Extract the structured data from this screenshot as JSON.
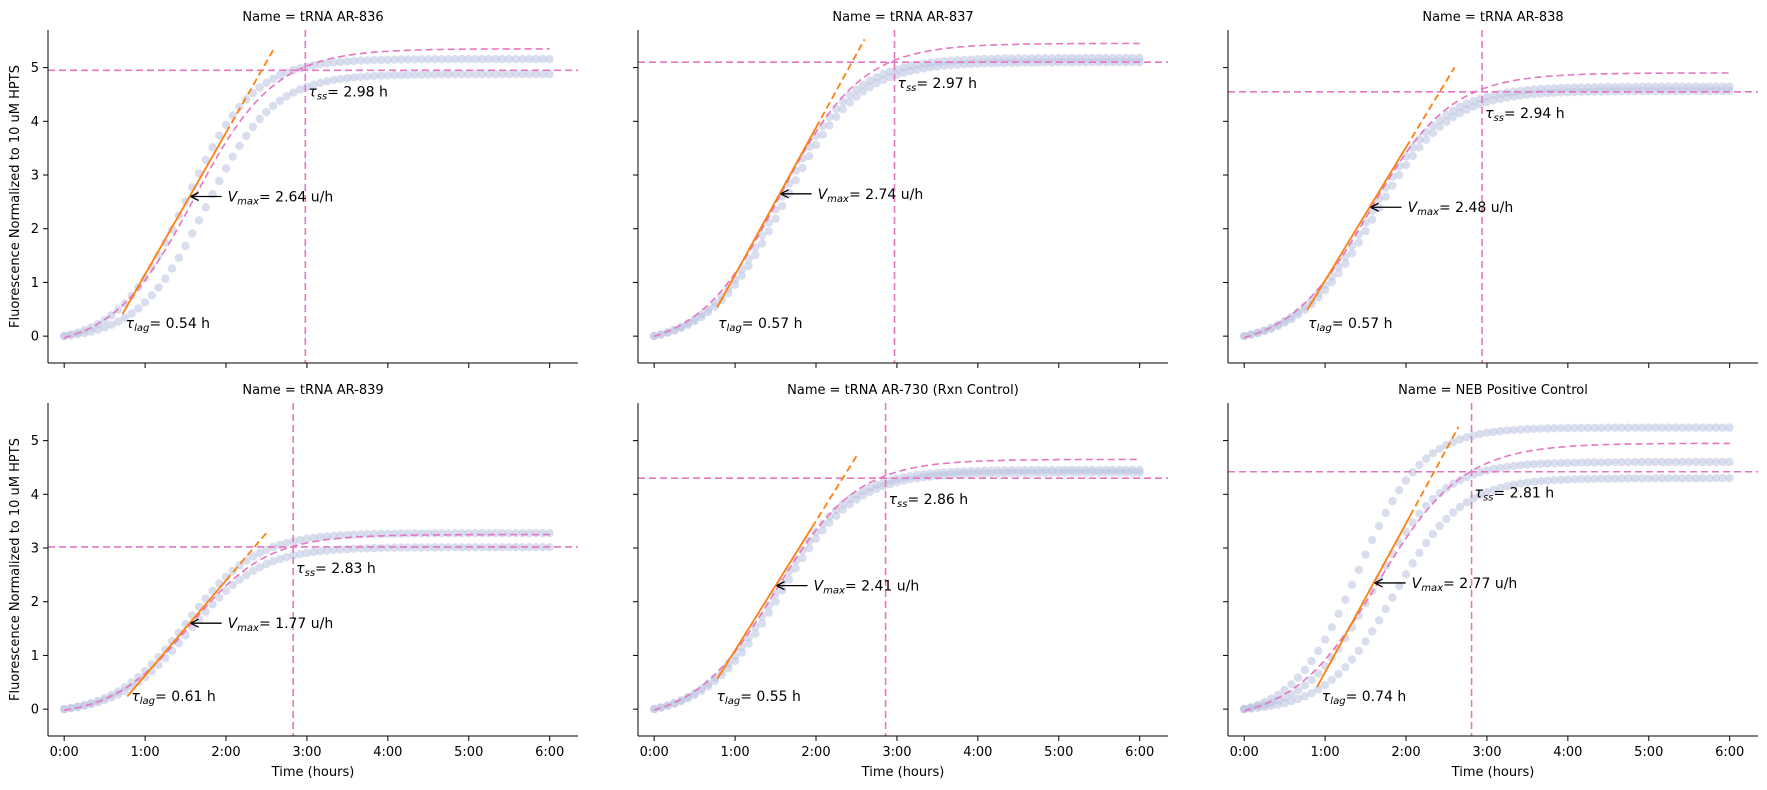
{
  "chart_data": {
    "type": "scatter",
    "layout": "2x3 facet grid",
    "shared_y": true,
    "xlabel": "Time (hours)",
    "ylabel": "Fluorescence Normalized to 10 uM HPTS",
    "xlim": [
      -0.2,
      6.35
    ],
    "ylim": [
      -0.5,
      5.7
    ],
    "x_ticks": [
      0,
      1,
      2,
      3,
      4,
      5,
      6
    ],
    "x_tick_labels": [
      "0:00",
      "1:00",
      "2:00",
      "3:00",
      "4:00",
      "5:00",
      "6:00"
    ],
    "y_ticks": [
      0,
      1,
      2,
      3,
      4,
      5
    ],
    "y_tick_labels": [
      "0",
      "1",
      "2",
      "3",
      "4",
      "5"
    ],
    "grid": false,
    "colors": {
      "points": "#b9c3e0",
      "fit": "#e377c2",
      "tangent": "#ff7f0e",
      "ref_lines": "#e377c2",
      "arrow": "#000000"
    },
    "annotation_text": {
      "tau": "τ",
      "lag_sub": "lag",
      "ss_sub": "ss",
      "vmax_sym": "V",
      "vmax_sub": "max",
      "hours_unit": "h",
      "rate_unit": "u/h",
      "equals": "="
    },
    "panels": [
      {
        "title": "Name = tRNA AR-836",
        "vmax": 2.64,
        "vmax_str": "2.64",
        "tau_lag": 0.54,
        "tau_lag_str": "0.54",
        "tau_ss": 2.98,
        "tau_ss_str": "2.98",
        "plateau": 4.95,
        "inflection": [
          1.55,
          2.6
        ],
        "tangent_x": [
          0.72,
          2.6
        ],
        "replicates": [
          {
            "plateau": 5.3,
            "midpoint": 1.5,
            "slope_k": 2.4
          },
          {
            "plateau": 4.95,
            "midpoint": 1.75,
            "slope_k": 2.4
          }
        ],
        "fit": {
          "plateau": 5.35,
          "midpoint": 1.6,
          "k": 2.0,
          "offset": -0.25
        }
      },
      {
        "title": "Name = tRNA AR-837",
        "vmax": 2.74,
        "vmax_str": "2.74",
        "tau_lag": 0.57,
        "tau_lag_str": "0.57",
        "tau_ss": 2.97,
        "tau_ss_str": "2.97",
        "plateau": 5.1,
        "inflection": [
          1.55,
          2.65
        ],
        "tangent_x": [
          0.78,
          2.6
        ],
        "replicates": [
          {
            "plateau": 5.35,
            "midpoint": 1.55,
            "slope_k": 2.2
          },
          {
            "plateau": 5.25,
            "midpoint": 1.6,
            "slope_k": 2.2
          }
        ],
        "fit": {
          "plateau": 5.45,
          "midpoint": 1.55,
          "k": 2.0,
          "offset": -0.25
        }
      },
      {
        "title": "Name = tRNA AR-838",
        "vmax": 2.48,
        "vmax_str": "2.48",
        "tau_lag": 0.57,
        "tau_lag_str": "0.57",
        "tau_ss": 2.94,
        "tau_ss_str": "2.94",
        "plateau": 4.55,
        "inflection": [
          1.55,
          2.4
        ],
        "tangent_x": [
          0.78,
          2.6
        ],
        "replicates": [
          {
            "plateau": 4.8,
            "midpoint": 1.55,
            "slope_k": 2.2
          },
          {
            "plateau": 4.7,
            "midpoint": 1.6,
            "slope_k": 2.2
          }
        ],
        "fit": {
          "plateau": 4.9,
          "midpoint": 1.55,
          "k": 2.0,
          "offset": -0.25
        }
      },
      {
        "title": "Name = tRNA AR-839",
        "vmax": 1.77,
        "vmax_str": "1.77",
        "tau_lag": 0.61,
        "tau_lag_str": "0.61",
        "tau_ss": 2.83,
        "tau_ss_str": "2.83",
        "plateau": 3.02,
        "inflection": [
          1.55,
          1.6
        ],
        "tangent_x": [
          0.78,
          2.5
        ],
        "replicates": [
          {
            "plateau": 3.38,
            "midpoint": 1.5,
            "slope_k": 2.3
          },
          {
            "plateau": 3.1,
            "midpoint": 1.55,
            "slope_k": 2.3
          }
        ],
        "fit": {
          "plateau": 3.25,
          "midpoint": 1.55,
          "k": 2.1,
          "offset": -0.15
        }
      },
      {
        "title": "Name = tRNA AR-730 (Rxn Control)",
        "vmax": 2.41,
        "vmax_str": "2.41",
        "tau_lag": 0.55,
        "tau_lag_str": "0.55",
        "tau_ss": 2.86,
        "tau_ss_str": "2.86",
        "plateau": 4.3,
        "inflection": [
          1.5,
          2.3
        ],
        "tangent_x": [
          0.78,
          2.5
        ],
        "replicates": [
          {
            "plateau": 4.62,
            "midpoint": 1.5,
            "slope_k": 2.2
          },
          {
            "plateau": 4.55,
            "midpoint": 1.55,
            "slope_k": 2.2
          }
        ],
        "fit": {
          "plateau": 4.65,
          "midpoint": 1.5,
          "k": 2.0,
          "offset": -0.25
        }
      },
      {
        "title": "Name = NEB Positive Control",
        "vmax": 2.77,
        "vmax_str": "2.77",
        "tau_lag": 0.74,
        "tau_lag_str": "0.74",
        "tau_ss": 2.81,
        "tau_ss_str": "2.81",
        "plateau": 4.42,
        "inflection": [
          1.6,
          2.35
        ],
        "tangent_x": [
          0.9,
          2.65
        ],
        "replicates": [
          {
            "plateau": 5.4,
            "midpoint": 1.4,
            "slope_k": 2.5
          },
          {
            "plateau": 4.7,
            "midpoint": 1.6,
            "slope_k": 2.4
          },
          {
            "plateau": 4.35,
            "midpoint": 1.85,
            "slope_k": 2.4
          }
        ],
        "fit": {
          "plateau": 4.95,
          "midpoint": 1.65,
          "k": 1.9,
          "offset": -0.25
        }
      }
    ]
  }
}
